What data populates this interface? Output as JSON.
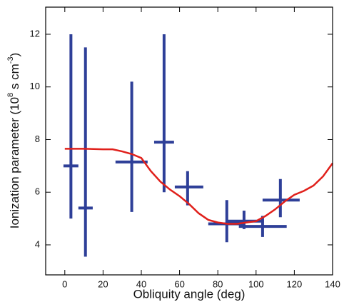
{
  "chart_data": {
    "type": "errorbar",
    "xlabel": "Obliquity angle (deg)",
    "ylabel": {
      "prefix": "Ionization parameter (10",
      "sup1": "8",
      "mid": " s cm",
      "sup2": "-3",
      "suffix": ")"
    },
    "xlim": [
      -10,
      140
    ],
    "ylim": [
      2.86,
      13.03
    ],
    "xticks": [
      0,
      20,
      40,
      60,
      80,
      100,
      120,
      140
    ],
    "yticks": [
      4,
      6,
      8,
      10,
      12
    ],
    "series": [
      {
        "color": "#2e3f98",
        "x": [
          3.2,
          10.8,
          35,
          51.9,
          64.2,
          84.7,
          93.7,
          103.4,
          112.7
        ],
        "x_low": [
          -0.7,
          7.1,
          26.5,
          46.7,
          57.5,
          75,
          84.4,
          91,
          103.4
        ],
        "x_high": [
          7.1,
          14.6,
          43.3,
          57.1,
          72.4,
          94,
          104.1,
          116,
          122.8
        ],
        "values": [
          7.0,
          5.4,
          7.15,
          7.9,
          6.2,
          4.8,
          4.9,
          4.7,
          5.7
        ],
        "y_low": [
          5.0,
          3.55,
          5.25,
          6.0,
          5.5,
          4.1,
          4.6,
          4.3,
          5.05
        ],
        "y_high": [
          12.0,
          11.5,
          10.2,
          12.0,
          6.8,
          5.7,
          5.3,
          5.1,
          6.5
        ]
      },
      {
        "color": "#e0201b",
        "kind": "line",
        "x": [
          0,
          10,
          20,
          25,
          30,
          35,
          40,
          45,
          50,
          55,
          60,
          65,
          70,
          75,
          80,
          85,
          90,
          95,
          100,
          105,
          110,
          115,
          120,
          125,
          130,
          135,
          140
        ],
        "values": [
          7.65,
          7.65,
          7.63,
          7.63,
          7.55,
          7.45,
          7.3,
          6.8,
          6.4,
          6.1,
          5.85,
          5.55,
          5.2,
          4.95,
          4.85,
          4.8,
          4.8,
          4.85,
          4.9,
          5.1,
          5.35,
          5.65,
          5.9,
          6.05,
          6.25,
          6.6,
          7.1
        ]
      }
    ]
  }
}
